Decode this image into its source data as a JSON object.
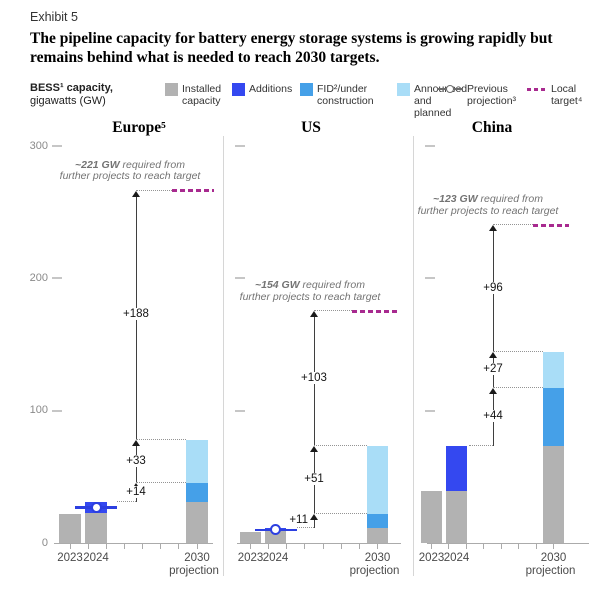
{
  "header": {
    "exhibit": "Exhibit 5",
    "title": "The pipeline capacity for battery energy storage systems is growing rapidly but remains behind what is needed to reach 2030 targets."
  },
  "legend": {
    "axis_label_bold": "BESS¹ capacity,",
    "axis_label_rest": "gigawatts (GW)",
    "items": [
      {
        "key": "installed",
        "type": "swatch",
        "color": "#b2b2b2",
        "lines": [
          "Installed",
          "capacity"
        ]
      },
      {
        "key": "additions",
        "type": "swatch",
        "color": "#3448f0",
        "lines": [
          "Additions"
        ]
      },
      {
        "key": "fid",
        "type": "swatch",
        "color": "#45a0e8",
        "lines": [
          "FID²/under",
          "construction"
        ]
      },
      {
        "key": "announced",
        "type": "swatch",
        "color": "#a9ddf7",
        "lines": [
          "Announced",
          "and planned"
        ]
      },
      {
        "key": "previous_projection",
        "type": "marker",
        "color": "#6b6b6b",
        "lines": [
          "Previous",
          "projection³"
        ]
      },
      {
        "key": "local_target",
        "type": "dash",
        "color": "#a82a8f",
        "lines": [
          "Local",
          "target⁴"
        ]
      }
    ]
  },
  "chart_data": {
    "type": "bar",
    "title": "The pipeline capacity for battery energy storage systems is growing rapidly but remains behind what is needed to reach 2030 targets.",
    "ylabel": "BESS capacity, gigawatts (GW)",
    "unit": "GW",
    "ylim": [
      0,
      300
    ],
    "yticks": [
      0,
      100,
      200,
      300
    ],
    "x_labels": [
      "2023",
      "2024",
      "2030",
      "projection"
    ],
    "segment_order": [
      "installed",
      "additions",
      "fid",
      "announced"
    ],
    "style": {
      "installed": "#b2b2b2",
      "additions": "#3448f0",
      "fid": "#45a0e8",
      "announced": "#a9ddf7",
      "marker": "#2c3fe0",
      "target": "#a82a8f"
    },
    "panels": [
      {
        "region": "Europe⁵",
        "bars": [
          {
            "year": "2023",
            "segments": {
              "installed": 22
            }
          },
          {
            "year": "2024",
            "segments": {
              "installed": 23,
              "additions": 8
            }
          },
          {
            "year": "2030 projection",
            "segments": {
              "installed": 31,
              "fid": 14,
              "announced": 33
            }
          }
        ],
        "previous_projection": 27,
        "target": 266,
        "increments": [
          {
            "label": "+14",
            "from": 31,
            "to": 45
          },
          {
            "label": "+33",
            "from": 45,
            "to": 78
          },
          {
            "label": "+188",
            "from": 78,
            "to": 266
          }
        ],
        "annotation": {
          "highlight": "~221 GW",
          "line1_rest": " required from",
          "line2": "further projects to reach target"
        }
      },
      {
        "region": "US",
        "bars": [
          {
            "year": "2023",
            "segments": {
              "installed": 8
            }
          },
          {
            "year": "2024",
            "segments": {
              "installed": 9,
              "additions": 2
            }
          },
          {
            "year": "2030 projection",
            "segments": {
              "installed": 11,
              "fid": 11,
              "announced": 51
            }
          }
        ],
        "previous_projection": 10,
        "target": 175,
        "increments": [
          {
            "label": "+11",
            "from": 11,
            "to": 22
          },
          {
            "label": "+51",
            "from": 22,
            "to": 73
          },
          {
            "label": "+103",
            "from": 73,
            "to": 175
          }
        ],
        "annotation": {
          "highlight": "~154 GW",
          "line1_rest": " required from",
          "line2": "further projects to reach target"
        }
      },
      {
        "region": "China",
        "bars": [
          {
            "year": "2023",
            "segments": {
              "installed": 39
            }
          },
          {
            "year": "2024",
            "segments": {
              "installed": 39,
              "additions": 34
            }
          },
          {
            "year": "2030 projection",
            "segments": {
              "installed": 73,
              "fid": 44,
              "announced": 27
            }
          }
        ],
        "previous_projection": null,
        "target": 240,
        "increments": [
          {
            "label": "+44",
            "from": 73,
            "to": 117
          },
          {
            "label": "+27",
            "from": 117,
            "to": 144
          },
          {
            "label": "+96",
            "from": 144,
            "to": 240
          }
        ],
        "annotation": {
          "highlight": "~123 GW",
          "line1_rest": " required from",
          "line2": "further projects to reach target"
        }
      }
    ]
  }
}
